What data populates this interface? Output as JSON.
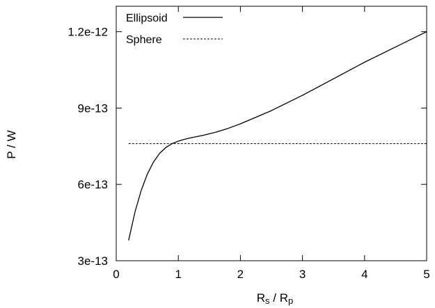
{
  "chart_data": {
    "type": "line",
    "xlabel": {
      "base": "R",
      "sub1": "s",
      "sep": " / ",
      "base2": "R",
      "sub2": "p"
    },
    "ylabel": "P / W",
    "xlim": [
      0,
      5
    ],
    "ylim": [
      3e-13,
      1.3e-12
    ],
    "x_ticks": [
      {
        "value": 0,
        "label": "0"
      },
      {
        "value": 1,
        "label": "1"
      },
      {
        "value": 2,
        "label": "2"
      },
      {
        "value": 3,
        "label": "3"
      },
      {
        "value": 4,
        "label": "4"
      },
      {
        "value": 5,
        "label": "5"
      }
    ],
    "y_ticks": [
      {
        "value": 3e-13,
        "label": "3e-13"
      },
      {
        "value": 6e-13,
        "label": "6e-13"
      },
      {
        "value": 9e-13,
        "label": "9e-13"
      },
      {
        "value": 1.2e-12,
        "label": "1.2e-12"
      }
    ],
    "legend_position": "top-left",
    "grid": false,
    "series": [
      {
        "name": "Ellipsoid",
        "style": "solid",
        "color": "#000000",
        "x": [
          0.2,
          0.3,
          0.4,
          0.5,
          0.6,
          0.7,
          0.8,
          0.9,
          1.0,
          1.1,
          1.2,
          1.4,
          1.6,
          1.8,
          2.0,
          2.5,
          3.0,
          3.5,
          4.0,
          4.5,
          5.0
        ],
        "y": [
          3.8e-13,
          4.9e-13,
          5.75e-13,
          6.4e-13,
          6.88e-13,
          7.22e-13,
          7.45e-13,
          7.6e-13,
          7.7e-13,
          7.77e-13,
          7.83e-13,
          7.93e-13,
          8.05e-13,
          8.2e-13,
          8.38e-13,
          8.9e-13,
          9.5e-13,
          1.015e-12,
          1.08e-12,
          1.14e-12,
          1.2e-12
        ]
      },
      {
        "name": "Sphere",
        "style": "dashed",
        "color": "#000000",
        "x": [
          0.2,
          5.0
        ],
        "y": [
          7.6e-13,
          7.6e-13
        ]
      }
    ]
  }
}
